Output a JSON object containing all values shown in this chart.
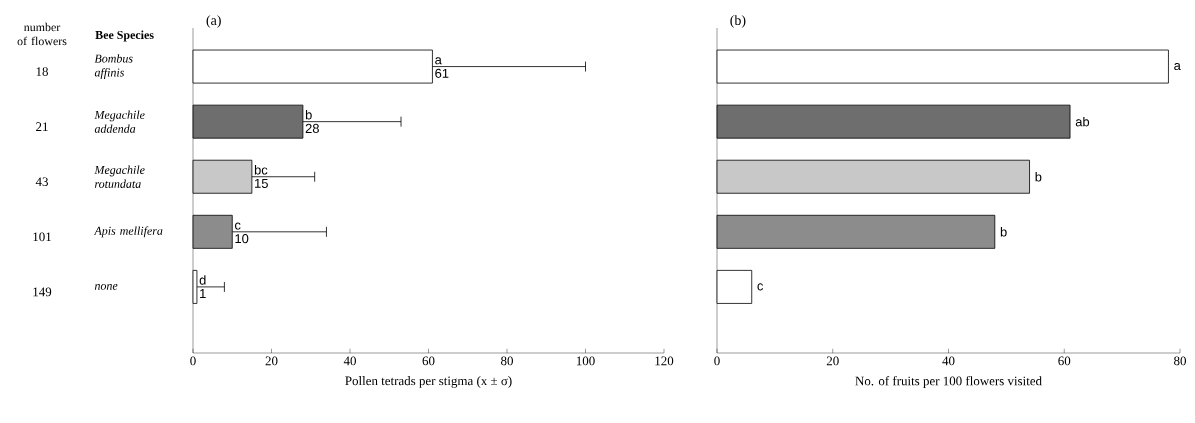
{
  "chart_data": [
    {
      "type": "bar",
      "orientation": "horizontal",
      "title": "(a)",
      "xlabel": "Pollen tetrads per stigma (x ± σ)",
      "ylabel": "Bee Species",
      "categories": [
        "Bombus affinis",
        "Megachile addenda",
        "Megachile rotundata",
        "Apis mellifera",
        "none"
      ],
      "values": [
        61,
        28,
        15,
        10,
        1
      ],
      "errors": [
        [
          61,
          100
        ],
        [
          28,
          53
        ],
        [
          15,
          31
        ],
        [
          10,
          34
        ],
        [
          1,
          8
        ]
      ],
      "data_labels": true,
      "colors": [
        "#ffffff",
        "#6e6e6e",
        "#c8c8c8",
        "#8c8c8c",
        "#ffffff"
      ],
      "xlim": [
        0,
        120
      ],
      "xticks": [
        0,
        20,
        40,
        60,
        80,
        100,
        120
      ],
      "annotations": [
        "number of flowers",
        "18",
        "21",
        "43",
        "101",
        "149",
        {
          "text": "a",
          "x": 61,
          "y": "Bombus affinis"
        },
        {
          "text": "b",
          "x": 28,
          "y": "Megachile addenda"
        },
        {
          "text": "bc",
          "x": 15,
          "y": "Megachile rotundata"
        },
        {
          "text": "c",
          "x": 10,
          "y": "Apis mellifera"
        },
        {
          "text": "d",
          "x": 1,
          "y": "none"
        }
      ]
    },
    {
      "type": "bar",
      "orientation": "horizontal",
      "title": "(b)",
      "xlabel": "No. of fruits per 100 flowers visited",
      "categories": [
        null,
        null,
        null,
        null,
        null
      ],
      "values": [
        78,
        61,
        54,
        48,
        6
      ],
      "value_labels": [
        "a",
        "ab",
        "b",
        "b",
        "c"
      ],
      "colors": [
        "#ffffff",
        "#6e6e6e",
        "#c8c8c8",
        "#8c8c8c",
        "#ffffff"
      ],
      "xlim": [
        0,
        80
      ],
      "xticks": [
        0,
        20,
        40,
        60,
        80
      ],
      "tick_labels": "x"
    }
  ]
}
